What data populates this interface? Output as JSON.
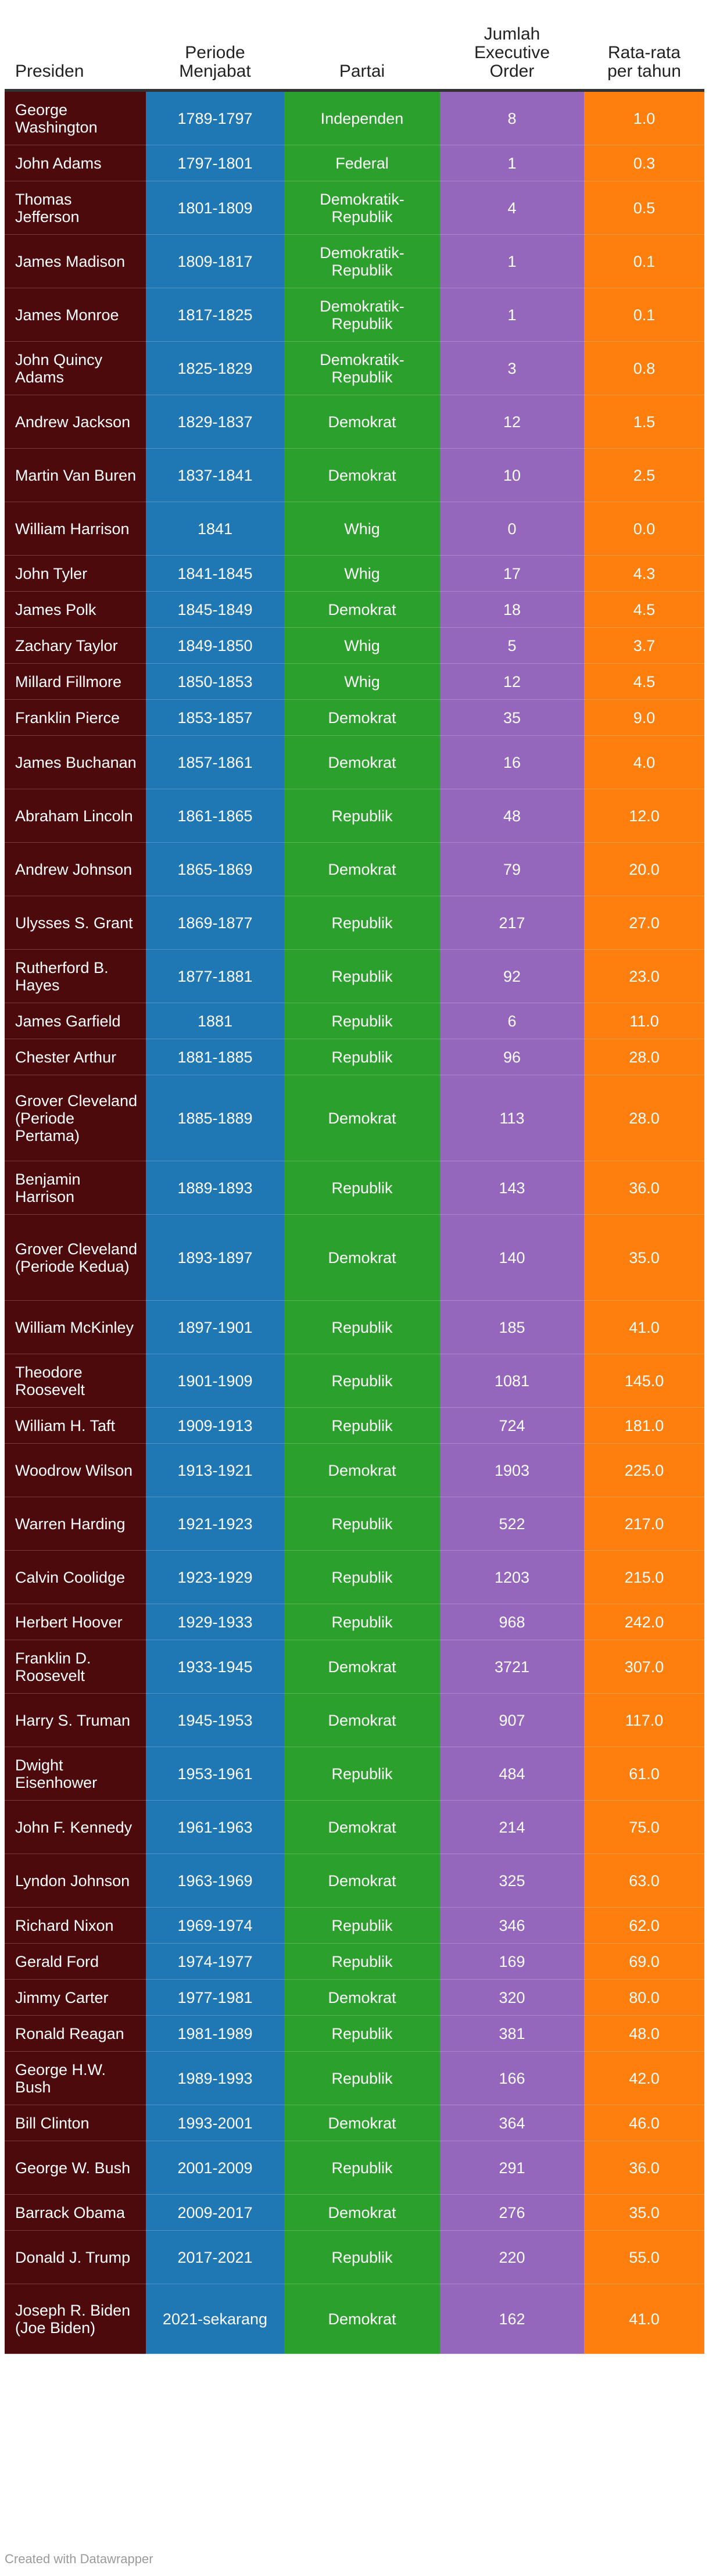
{
  "chart_data": {
    "type": "table",
    "columns": [
      "Presiden",
      "Periode\nMenjabat",
      "Partai",
      "Jumlah\nExecutive\nOrder",
      "Rata-rata\nper tahun"
    ],
    "column_colors": [
      "#4d0a0c",
      "#1f77b4",
      "#2ca02c",
      "#9467bd",
      "#ff7f0e"
    ],
    "header_text_color": "#222222",
    "cell_text_color": "#ffffff",
    "rows": [
      {
        "president": "George Washington",
        "period": "1789-1797",
        "party": "Independen",
        "orders": 8,
        "avg": "1.0"
      },
      {
        "president": "John Adams",
        "period": "1797-1801",
        "party": "Federal",
        "orders": 1,
        "avg": "0.3"
      },
      {
        "president": "Thomas Jefferson",
        "period": "1801-1809",
        "party": "Demokratik-Republik",
        "orders": 4,
        "avg": "0.5"
      },
      {
        "president": "James Madison",
        "period": "1809-1817",
        "party": "Demokratik-Republik",
        "orders": 1,
        "avg": "0.1"
      },
      {
        "president": "James Monroe",
        "period": "1817-1825",
        "party": "Demokratik-Republik",
        "orders": 1,
        "avg": "0.1"
      },
      {
        "president": "John Quincy Adams",
        "period": "1825-1829",
        "party": "Demokratik-Republik",
        "orders": 3,
        "avg": "0.8"
      },
      {
        "president": "Andrew Jackson",
        "period": "1829-1837",
        "party": "Demokrat",
        "orders": 12,
        "avg": "1.5"
      },
      {
        "president": "Martin Van Buren",
        "period": "1837-1841",
        "party": "Demokrat",
        "orders": 10,
        "avg": "2.5"
      },
      {
        "president": "William Harrison",
        "period": "1841",
        "party": "Whig",
        "orders": 0,
        "avg": "0.0"
      },
      {
        "president": "John Tyler",
        "period": "1841-1845",
        "party": "Whig",
        "orders": 17,
        "avg": "4.3"
      },
      {
        "president": "James Polk",
        "period": "1845-1849",
        "party": "Demokrat",
        "orders": 18,
        "avg": "4.5"
      },
      {
        "president": "Zachary Taylor",
        "period": "1849-1850",
        "party": "Whig",
        "orders": 5,
        "avg": "3.7"
      },
      {
        "president": "Millard Fillmore",
        "period": "1850-1853",
        "party": "Whig",
        "orders": 12,
        "avg": "4.5"
      },
      {
        "president": "Franklin Pierce",
        "period": "1853-1857",
        "party": "Demokrat",
        "orders": 35,
        "avg": "9.0"
      },
      {
        "president": "James Buchanan",
        "period": "1857-1861",
        "party": "Demokrat",
        "orders": 16,
        "avg": "4.0"
      },
      {
        "president": "Abraham Lincoln",
        "period": "1861-1865",
        "party": "Republik",
        "orders": 48,
        "avg": "12.0"
      },
      {
        "president": "Andrew Johnson",
        "period": "1865-1869",
        "party": "Demokrat",
        "orders": 79,
        "avg": "20.0"
      },
      {
        "president": "Ulysses S. Grant",
        "period": "1869-1877",
        "party": "Republik",
        "orders": 217,
        "avg": "27.0"
      },
      {
        "president": "Rutherford B. Hayes",
        "period": "1877-1881",
        "party": "Republik",
        "orders": 92,
        "avg": "23.0"
      },
      {
        "president": "James Garfield",
        "period": "1881",
        "party": "Republik",
        "orders": 6,
        "avg": "11.0"
      },
      {
        "president": "Chester Arthur",
        "period": "1881-1885",
        "party": "Republik",
        "orders": 96,
        "avg": "28.0"
      },
      {
        "president": "Grover Cleveland (Periode Pertama)",
        "period": "1885-1889",
        "party": "Demokrat",
        "orders": 113,
        "avg": "28.0"
      },
      {
        "president": "Benjamin Harrison",
        "period": "1889-1893",
        "party": "Republik",
        "orders": 143,
        "avg": "36.0"
      },
      {
        "president": "Grover Cleveland (Periode Kedua)",
        "period": "1893-1897",
        "party": "Demokrat",
        "orders": 140,
        "avg": "35.0"
      },
      {
        "president": "William McKinley",
        "period": "1897-1901",
        "party": "Republik",
        "orders": 185,
        "avg": "41.0"
      },
      {
        "president": "Theodore Roosevelt",
        "period": "1901-1909",
        "party": "Republik",
        "orders": 1081,
        "avg": "145.0"
      },
      {
        "president": "William H. Taft",
        "period": "1909-1913",
        "party": "Republik",
        "orders": 724,
        "avg": "181.0"
      },
      {
        "president": "Woodrow Wilson",
        "period": "1913-1921",
        "party": "Demokrat",
        "orders": 1903,
        "avg": "225.0"
      },
      {
        "president": "Warren Harding",
        "period": "1921-1923",
        "party": "Republik",
        "orders": 522,
        "avg": "217.0"
      },
      {
        "president": "Calvin Coolidge",
        "period": "1923-1929",
        "party": "Republik",
        "orders": 1203,
        "avg": "215.0"
      },
      {
        "president": "Herbert Hoover",
        "period": "1929-1933",
        "party": "Republik",
        "orders": 968,
        "avg": "242.0"
      },
      {
        "president": "Franklin D. Roosevelt",
        "period": "1933-1945",
        "party": "Demokrat",
        "orders": 3721,
        "avg": "307.0"
      },
      {
        "president": "Harry S. Truman",
        "period": "1945-1953",
        "party": "Demokrat",
        "orders": 907,
        "avg": "117.0"
      },
      {
        "president": "Dwight Eisenhower",
        "period": "1953-1961",
        "party": "Republik",
        "orders": 484,
        "avg": "61.0"
      },
      {
        "president": "John F. Kennedy",
        "period": "1961-1963",
        "party": "Demokrat",
        "orders": 214,
        "avg": "75.0"
      },
      {
        "president": "Lyndon Johnson",
        "period": "1963-1969",
        "party": "Demokrat",
        "orders": 325,
        "avg": "63.0"
      },
      {
        "president": "Richard Nixon",
        "period": "1969-1974",
        "party": "Republik",
        "orders": 346,
        "avg": "62.0"
      },
      {
        "president": "Gerald Ford",
        "period": "1974-1977",
        "party": "Republik",
        "orders": 169,
        "avg": "69.0"
      },
      {
        "president": "Jimmy Carter",
        "period": "1977-1981",
        "party": "Demokrat",
        "orders": 320,
        "avg": "80.0"
      },
      {
        "president": "Ronald Reagan",
        "period": "1981-1989",
        "party": "Republik",
        "orders": 381,
        "avg": "48.0"
      },
      {
        "president": "George H.W. Bush",
        "period": "1989-1993",
        "party": "Republik",
        "orders": 166,
        "avg": "42.0"
      },
      {
        "president": "Bill Clinton",
        "period": "1993-2001",
        "party": "Demokrat",
        "orders": 364,
        "avg": "46.0"
      },
      {
        "president": "George W. Bush",
        "period": "2001-2009",
        "party": "Republik",
        "orders": 291,
        "avg": "36.0"
      },
      {
        "president": "Barrack Obama",
        "period": "2009-2017",
        "party": "Demokrat",
        "orders": 276,
        "avg": "35.0"
      },
      {
        "president": "Donald J. Trump",
        "period": "2017-2021",
        "party": "Republik",
        "orders": 220,
        "avg": "55.0"
      },
      {
        "president": "Joseph R. Biden (Joe Biden)",
        "period": "2021-sekarang",
        "party": "Demokrat",
        "orders": 162,
        "avg": "41.0"
      }
    ]
  },
  "footer": {
    "credit": "Created with Datawrapper"
  }
}
